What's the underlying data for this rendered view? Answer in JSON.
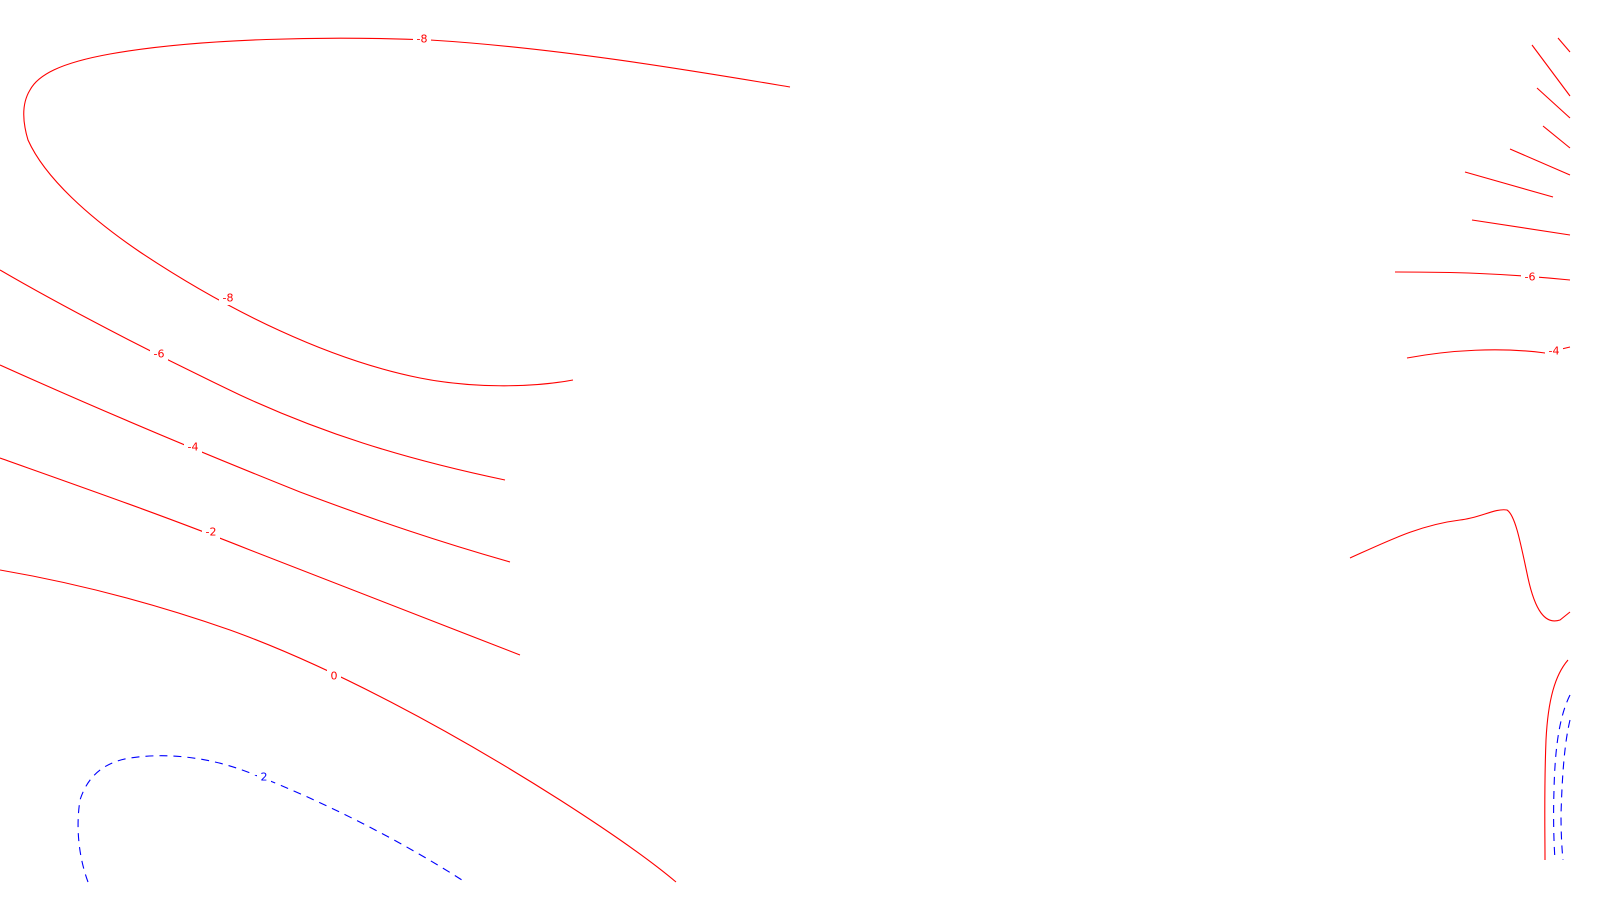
{
  "chart_data": {
    "type": "contour",
    "title": "",
    "xlabel": "",
    "ylabel": "",
    "grid": false,
    "legend": "none",
    "colors": {
      "positive_or_zero": "#ff0000",
      "negative_dashed": "#0000ff"
    },
    "level_labels": [
      {
        "text": "-8"
      },
      {
        "text": "-8"
      },
      {
        "text": "-6"
      },
      {
        "text": "-4"
      },
      {
        "text": "-2"
      },
      {
        "text": "0"
      },
      {
        "text": "2"
      },
      {
        "text": "-6"
      },
      {
        "text": "-4"
      }
    ]
  }
}
